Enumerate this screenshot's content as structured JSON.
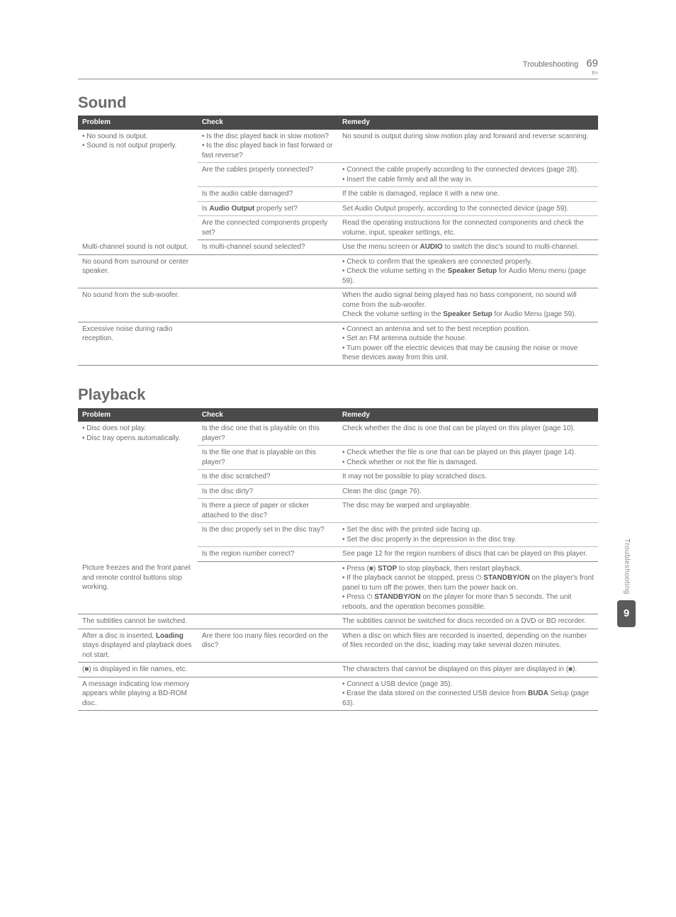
{
  "header": {
    "title": "Troubleshooting",
    "page_number": "69",
    "lang": "En"
  },
  "sections": [
    {
      "heading": "Sound",
      "columns": [
        "Problem",
        "Check",
        "Remedy"
      ],
      "groups": [
        {
          "problem": "• No sound is output.\n• Sound is not output properly.",
          "rows": [
            {
              "check": "• Is the disc played back in slow motion?\n• Is the disc played back in fast forward or fast reverse?",
              "remedy": "No sound is output during slow motion play and forward and reverse scanning."
            },
            {
              "check": "Are the cables properly connected?",
              "remedy": "• Connect the cable properly according to the connected devices (page 28).\n• Insert the cable firmly and all the way in."
            },
            {
              "check": "Is the audio cable damaged?",
              "remedy": "If the cable is damaged, replace it with a new one."
            },
            {
              "check": "Is <b>Audio Output</b> properly set?",
              "remedy": "Set Audio Output properly, according to the connected device (page 59)."
            },
            {
              "check": "Are the connected components properly set?",
              "remedy": "Read the operating instructions for the connected components and check the volume, input, speaker settings, etc."
            }
          ]
        },
        {
          "problem": "Multi-channel sound is not output.",
          "rows": [
            {
              "check": "Is multi-channel sound selected?",
              "remedy": "Use the menu screen or <b>AUDIO</b> to switch the disc's sound to multi-channel."
            }
          ]
        },
        {
          "problem": "No sound from surround or center speaker.",
          "rows": [
            {
              "check": "",
              "remedy": "• Check to confirm that the speakers are connected properly.\n• Check the volume setting in the <b>Speaker Setup</b> for Audio Menu menu (page 59)."
            }
          ]
        },
        {
          "problem": "No sound from the sub-woofer.",
          "rows": [
            {
              "check": "",
              "remedy": "When the audio signal being played has no bass component, no sound will come from the sub-woofer.\nCheck the volume setting in the <b>Speaker Setup</b> for Audio Menu (page 59)."
            }
          ]
        },
        {
          "problem": "Excessive noise during radio reception.",
          "rows": [
            {
              "check": "",
              "remedy": "• Connect an antenna and set to the best reception position.\n• Set an FM antenna outside the house.\n• Turn power off the electric devices that may be causing the noise or move these devices away from this unit."
            }
          ]
        }
      ]
    },
    {
      "heading": "Playback",
      "columns": [
        "Problem",
        "Check",
        "Remedy"
      ],
      "groups": [
        {
          "problem": "• Disc does not play.\n• Disc tray opens automatically.",
          "rows": [
            {
              "check": "Is the disc one that is playable on this player?",
              "remedy": "Check whether the disc is one that can be played on this player (page 10)."
            },
            {
              "check": "Is the file one that is playable on this player?",
              "remedy": "• Check whether the file is one that can be played on this player (page 14).\n• Check whether or not the file is damaged."
            },
            {
              "check": "Is the disc scratched?",
              "remedy": "It may not be possible to play scratched discs."
            },
            {
              "check": "Is the disc dirty?",
              "remedy": "Clean the disc (page 76)."
            },
            {
              "check": "Is there a piece of paper or sticker attached to the disc?",
              "remedy": "The disc may be warped and unplayable."
            },
            {
              "check": "Is the disc properly set in the disc tray?",
              "remedy": "• Set the disc with the printed side facing up.\n• Set the disc properly in the depression in the disc tray."
            },
            {
              "check": "Is the region number correct?",
              "remedy": "See page 12 for the region numbers of discs that can be played on this player."
            }
          ]
        },
        {
          "problem": "Picture freezes and the front panel and remote control buttons stop working.",
          "rows": [
            {
              "check": "",
              "remedy": "• Press (■) <b>STOP</b> to stop playback, then restart playback.\n• If the playback cannot be stopped, press ⏻ <b>STANDBY/ON</b> on the player's front panel to turn off the power, then turn the power back on.\n• Press ⏻ <b>STANDBY/ON</b> on the player for more than 5 seconds. The unit reboots, and the operation becomes possible."
            }
          ]
        },
        {
          "problem": "The subtitles cannot be switched.",
          "rows": [
            {
              "check": "",
              "remedy": "The subtitles cannot be switched for discs recorded on a DVD or BD recorder."
            }
          ]
        },
        {
          "problem": "After a disc is inserted, <b>Loading</b> stays displayed and playback does not start.",
          "rows": [
            {
              "check": "Are there too many files recorded on the disc?",
              "remedy": "When a disc on which files are recorded is inserted, depending on the number of files recorded on the disc, loading may take several dozen minutes."
            }
          ]
        },
        {
          "problem": "(■) is displayed in file names, etc.",
          "rows": [
            {
              "check": "",
              "remedy": "The characters that cannot be displayed on this player are displayed in (■)."
            }
          ]
        },
        {
          "problem": "A message indicating low memory appears while playing a BD-ROM disc.",
          "rows": [
            {
              "check": "",
              "remedy": "• Connect a USB device (page 35).\n• Erase the data stored on the connected USB device from <b>BUDA</b> Setup (page 63)."
            }
          ]
        }
      ]
    }
  ],
  "side_tab": {
    "label": "Troubleshooting",
    "chapter": "9"
  }
}
